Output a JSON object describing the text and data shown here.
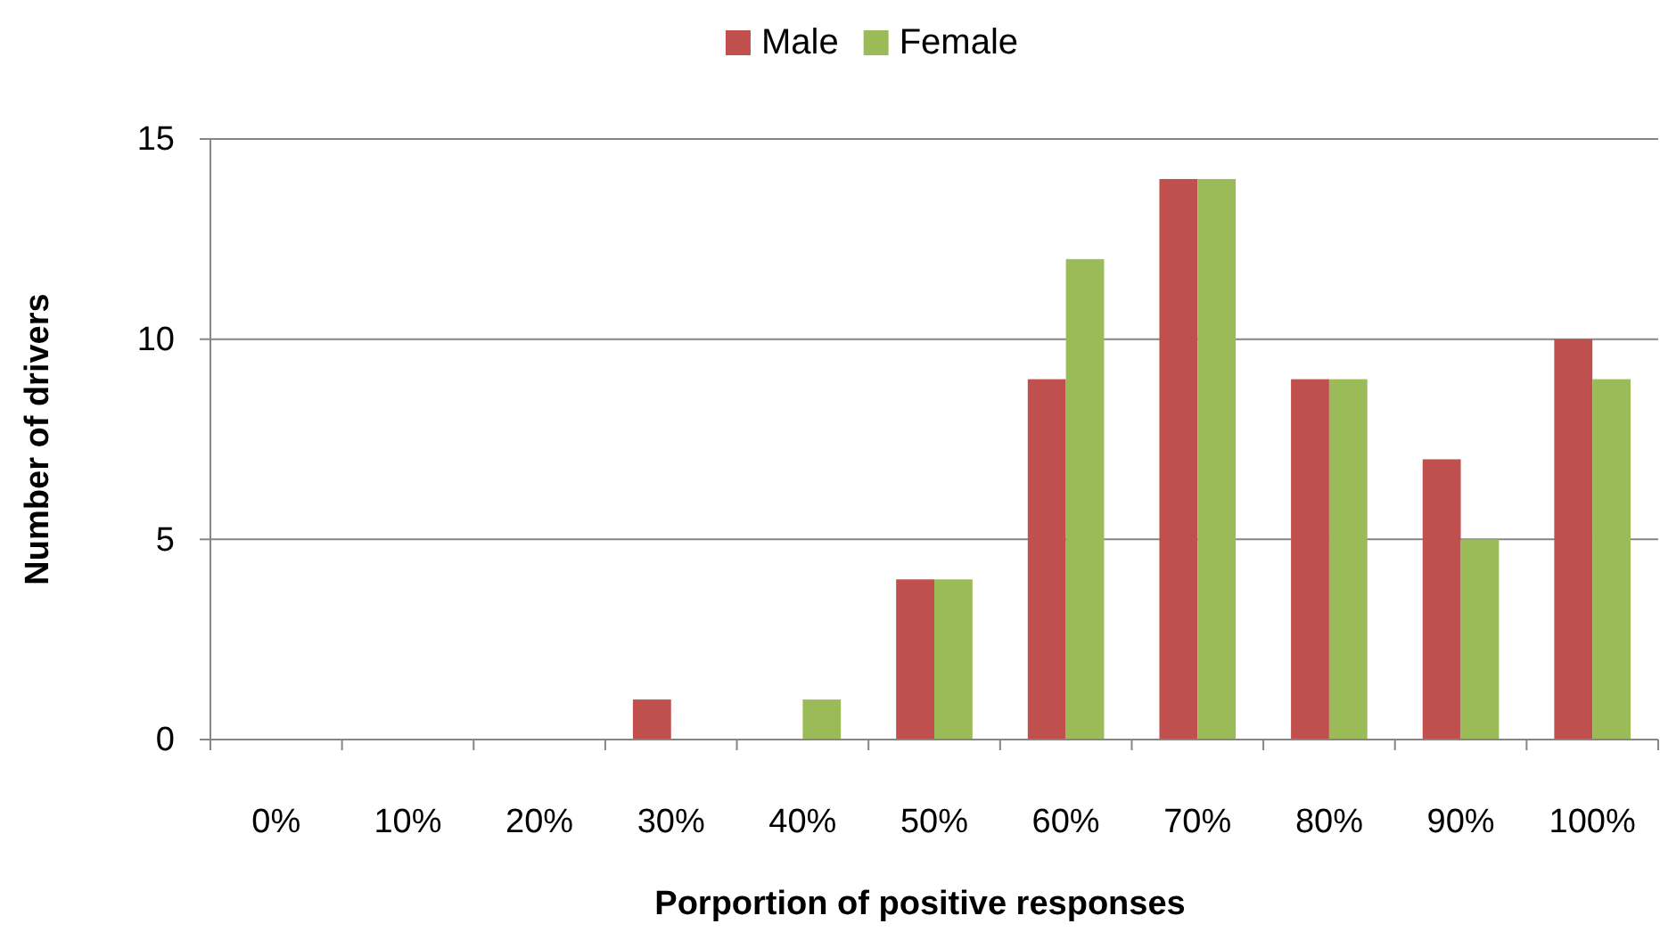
{
  "chart_data": {
    "type": "bar",
    "xlabel": "Porportion of positive responses",
    "ylabel": "Number of drivers",
    "categories": [
      "0%",
      "10%",
      "20%",
      "30%",
      "40%",
      "50%",
      "60%",
      "70%",
      "80%",
      "90%",
      "100%"
    ],
    "series": [
      {
        "name": "Male",
        "color": "#c0504d",
        "values": [
          0,
          0,
          0,
          1,
          0,
          4,
          9,
          14,
          9,
          7,
          10
        ]
      },
      {
        "name": "Female",
        "color": "#9bbb59",
        "values": [
          0,
          0,
          0,
          0,
          1,
          4,
          12,
          14,
          9,
          5,
          9
        ]
      }
    ],
    "ylim": [
      0,
      15
    ],
    "yticks": [
      0,
      5,
      10,
      15
    ],
    "grid": "y",
    "legend": "top"
  }
}
